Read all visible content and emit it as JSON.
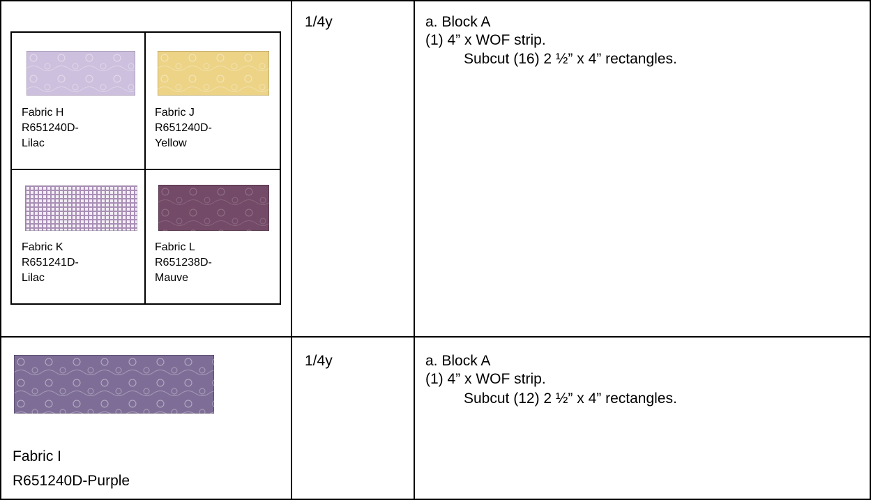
{
  "table": {
    "rows": [
      {
        "fabrics": [
          {
            "name": "Fabric H",
            "sku": "R651240D-",
            "color": "Lilac"
          },
          {
            "name": "Fabric J",
            "sku": "R651240D-",
            "color": "Yellow"
          },
          {
            "name": "Fabric K",
            "sku": "R651241D-",
            "color": "Lilac"
          },
          {
            "name": "Fabric L",
            "sku": "R651238D-",
            "color": "Mauve"
          }
        ],
        "yardage": "1/4y",
        "cutting": [
          "a. Block A",
          "(1) 4” x WOF strip.",
          "Subcut (16) 2 ½” x 4” rectangles."
        ]
      },
      {
        "fabrics": [
          {
            "name": "Fabric I",
            "sku": "R651240D-Purple"
          }
        ],
        "yardage": "1/4y",
        "cutting": [
          "a. Block A",
          "(1) 4” x WOF strip.",
          "Subcut (12) 2 ½” x 4” rectangles."
        ]
      }
    ]
  }
}
